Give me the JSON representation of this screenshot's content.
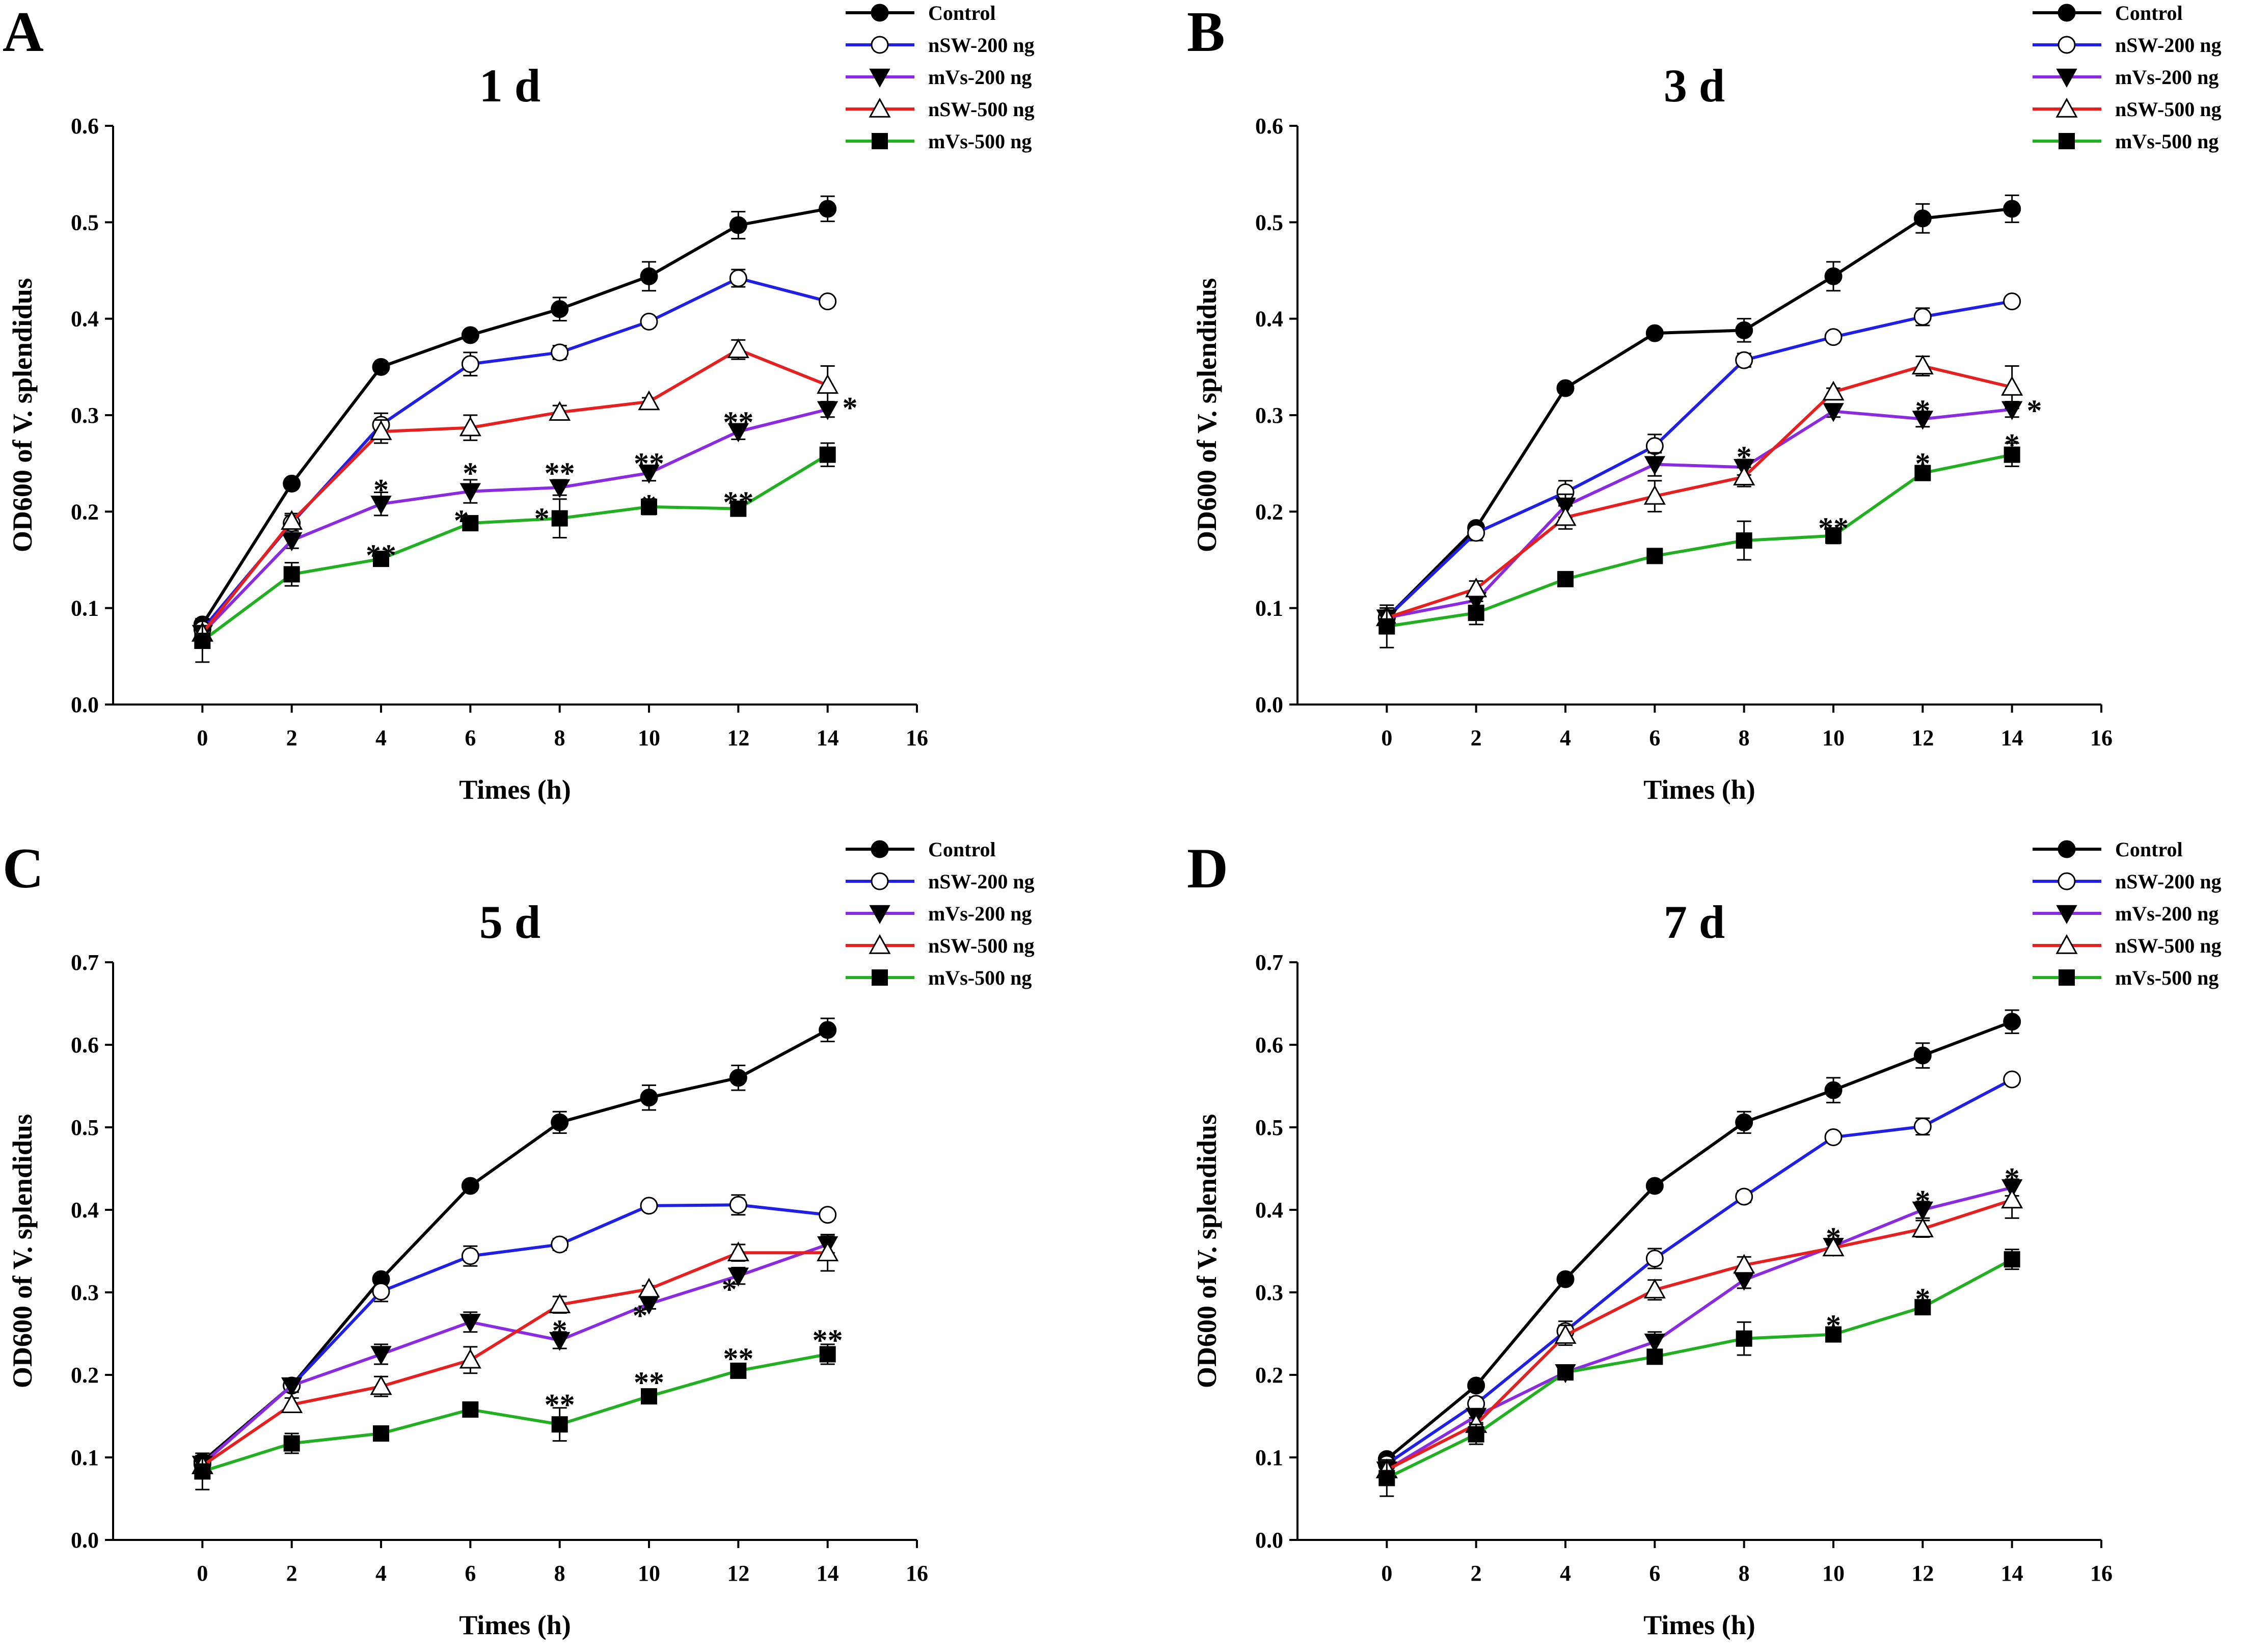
{
  "colors": {
    "Control": "#000000",
    "nSW-200 ng": "#1f1fe6",
    "mVs-200 ng": "#8a2be2",
    "nSW-500 ng": "#e61f1f",
    "mVs-500 ng": "#22b022"
  },
  "chart_data": [
    {
      "panel": "A",
      "type": "line",
      "title": "1 d",
      "xlabel": "Times (h)",
      "ylabel": "OD600 of V. splendidus",
      "xlim": [
        -2,
        16
      ],
      "ylim": [
        0,
        0.6
      ],
      "xticks": [
        0,
        2,
        4,
        6,
        8,
        10,
        12,
        14,
        16
      ],
      "yticks": [
        0.0,
        0.1,
        0.2,
        0.3,
        0.4,
        0.5,
        0.6
      ],
      "x": [
        0,
        2,
        4,
        6,
        8,
        10,
        12,
        14
      ],
      "legend_position": "top-right",
      "series": [
        {
          "name": "Control",
          "marker": "filled-circle",
          "values": [
            0.083,
            0.229,
            0.35,
            0.383,
            0.41,
            0.444,
            0.497,
            0.514
          ],
          "errors": [
            0.006,
            0.005,
            0.004,
            0.004,
            0.012,
            0.015,
            0.014,
            0.013
          ]
        },
        {
          "name": "nSW-200 ng",
          "marker": "open-circle",
          "values": [
            0.078,
            0.188,
            0.29,
            0.353,
            0.365,
            0.397,
            0.442,
            0.418
          ],
          "errors": [
            0.006,
            0.008,
            0.012,
            0.012,
            0.007,
            0.004,
            0.009,
            0.004
          ]
        },
        {
          "name": "mVs-200 ng",
          "marker": "filled-triangle-down",
          "values": [
            0.074,
            0.17,
            0.208,
            0.221,
            0.225,
            0.24,
            0.283,
            0.306
          ],
          "errors": [
            0.006,
            0.008,
            0.012,
            0.012,
            0.008,
            0.008,
            0.008,
            0.008
          ]
        },
        {
          "name": "nSW-500 ng",
          "marker": "open-triangle-up",
          "values": [
            0.074,
            0.19,
            0.283,
            0.287,
            0.303,
            0.314,
            0.368,
            0.331
          ],
          "errors": [
            0.006,
            0.008,
            0.012,
            0.013,
            0.007,
            0.004,
            0.01,
            0.02
          ]
        },
        {
          "name": "mVs-500 ng",
          "marker": "filled-square",
          "values": [
            0.066,
            0.135,
            0.151,
            0.188,
            0.193,
            0.205,
            0.203,
            0.259
          ],
          "errors": [
            0.022,
            0.012,
            0.005,
            0.006,
            0.02,
            0.008,
            0.004,
            0.012
          ]
        }
      ],
      "annotations": [
        {
          "text": "*",
          "x": 4,
          "y": 0.228
        },
        {
          "text": "**",
          "x": 4,
          "y": 0.16
        },
        {
          "text": "*",
          "x": 6,
          "y": 0.245
        },
        {
          "text": "*",
          "x": 5.8,
          "y": 0.196
        },
        {
          "text": "**",
          "x": 8,
          "y": 0.245
        },
        {
          "text": "*",
          "x": 7.6,
          "y": 0.198
        },
        {
          "text": "**",
          "x": 10,
          "y": 0.255
        },
        {
          "text": "*",
          "x": 10,
          "y": 0.212
        },
        {
          "text": "**",
          "x": 12,
          "y": 0.298
        },
        {
          "text": "**",
          "x": 12,
          "y": 0.215
        },
        {
          "text": "*",
          "x": 14.5,
          "y": 0.313
        }
      ]
    },
    {
      "panel": "B",
      "type": "line",
      "title": "3 d",
      "xlabel": "Times (h)",
      "ylabel": "OD600 of V. splendidus",
      "xlim": [
        -2,
        16
      ],
      "ylim": [
        0,
        0.6
      ],
      "xticks": [
        0,
        2,
        4,
        6,
        8,
        10,
        12,
        14,
        16
      ],
      "yticks": [
        0.0,
        0.1,
        0.2,
        0.3,
        0.4,
        0.5,
        0.6
      ],
      "x": [
        0,
        2,
        4,
        6,
        8,
        10,
        12,
        14
      ],
      "legend_position": "top-right",
      "series": [
        {
          "name": "Control",
          "marker": "filled-circle",
          "values": [
            0.09,
            0.183,
            0.328,
            0.385,
            0.388,
            0.444,
            0.504,
            0.514
          ],
          "errors": [
            0.006,
            0.005,
            0.004,
            0.004,
            0.012,
            0.015,
            0.015,
            0.014
          ]
        },
        {
          "name": "nSW-200 ng",
          "marker": "open-circle",
          "values": [
            0.09,
            0.178,
            0.22,
            0.268,
            0.357,
            0.381,
            0.402,
            0.418
          ],
          "errors": [
            0.01,
            0.008,
            0.012,
            0.012,
            0.007,
            0.004,
            0.009,
            0.004
          ]
        },
        {
          "name": "mVs-200 ng",
          "marker": "filled-triangle-down",
          "values": [
            0.09,
            0.108,
            0.206,
            0.249,
            0.246,
            0.304,
            0.296,
            0.306
          ],
          "errors": [
            0.01,
            0.008,
            0.012,
            0.012,
            0.008,
            0.006,
            0.008,
            0.008
          ]
        },
        {
          "name": "nSW-500 ng",
          "marker": "open-triangle-up",
          "values": [
            0.09,
            0.12,
            0.194,
            0.216,
            0.236,
            0.324,
            0.351,
            0.329
          ],
          "errors": [
            0.01,
            0.008,
            0.012,
            0.016,
            0.01,
            0.004,
            0.01,
            0.022
          ]
        },
        {
          "name": "mVs-500 ng",
          "marker": "filled-square",
          "values": [
            0.081,
            0.095,
            0.13,
            0.154,
            0.17,
            0.175,
            0.24,
            0.259
          ],
          "errors": [
            0.022,
            0.012,
            0.005,
            0.006,
            0.02,
            0.008,
            0.004,
            0.012
          ]
        }
      ],
      "annotations": [
        {
          "text": "*",
          "x": 8,
          "y": 0.262
        },
        {
          "text": "**",
          "x": 10,
          "y": 0.188
        },
        {
          "text": "*",
          "x": 12,
          "y": 0.31
        },
        {
          "text": "*",
          "x": 12,
          "y": 0.255
        },
        {
          "text": "*",
          "x": 14.5,
          "y": 0.31
        },
        {
          "text": "*",
          "x": 14,
          "y": 0.275
        }
      ]
    },
    {
      "panel": "C",
      "type": "line",
      "title": "5 d",
      "xlabel": "Times (h)",
      "ylabel": "OD600 of V. splendidus",
      "xlim": [
        -2,
        16
      ],
      "ylim": [
        0,
        0.7
      ],
      "xticks": [
        0,
        2,
        4,
        6,
        8,
        10,
        12,
        14,
        16
      ],
      "yticks": [
        0.0,
        0.1,
        0.2,
        0.3,
        0.4,
        0.5,
        0.6,
        0.7
      ],
      "x": [
        0,
        2,
        4,
        6,
        8,
        10,
        12,
        14
      ],
      "legend_position": "top-right",
      "series": [
        {
          "name": "Control",
          "marker": "filled-circle",
          "values": [
            0.095,
            0.187,
            0.316,
            0.429,
            0.506,
            0.536,
            0.56,
            0.618
          ],
          "errors": [
            0.006,
            0.006,
            0.004,
            0.004,
            0.013,
            0.015,
            0.015,
            0.014
          ]
        },
        {
          "name": "nSW-200 ng",
          "marker": "open-circle",
          "values": [
            0.092,
            0.187,
            0.301,
            0.344,
            0.358,
            0.405,
            0.406,
            0.394
          ],
          "errors": [
            0.01,
            0.008,
            0.012,
            0.012,
            0.007,
            0.004,
            0.012,
            0.004
          ]
        },
        {
          "name": "mVs-200 ng",
          "marker": "filled-triangle-down",
          "values": [
            0.092,
            0.187,
            0.225,
            0.264,
            0.242,
            0.286,
            0.32,
            0.358
          ],
          "errors": [
            0.01,
            0.008,
            0.012,
            0.012,
            0.01,
            0.006,
            0.01,
            0.01
          ]
        },
        {
          "name": "nSW-500 ng",
          "marker": "open-triangle-up",
          "values": [
            0.09,
            0.164,
            0.186,
            0.218,
            0.285,
            0.304,
            0.348,
            0.348
          ],
          "errors": [
            0.01,
            0.008,
            0.012,
            0.016,
            0.01,
            0.004,
            0.01,
            0.022
          ]
        },
        {
          "name": "mVs-500 ng",
          "marker": "filled-square",
          "values": [
            0.083,
            0.117,
            0.129,
            0.158,
            0.14,
            0.174,
            0.205,
            0.225
          ],
          "errors": [
            0.022,
            0.012,
            0.005,
            0.006,
            0.02,
            0.008,
            0.004,
            0.012
          ]
        }
      ],
      "annotations": [
        {
          "text": "*",
          "x": 8,
          "y": 0.26
        },
        {
          "text": "**",
          "x": 8,
          "y": 0.17
        },
        {
          "text": "*",
          "x": 9.8,
          "y": 0.278
        },
        {
          "text": "**",
          "x": 10,
          "y": 0.197
        },
        {
          "text": "*",
          "x": 11.8,
          "y": 0.31
        },
        {
          "text": "**",
          "x": 12,
          "y": 0.226
        },
        {
          "text": "**",
          "x": 14,
          "y": 0.248
        }
      ]
    },
    {
      "panel": "D",
      "type": "line",
      "title": "7 d",
      "xlabel": "Times (h)",
      "ylabel": "OD600 of V. splendidus",
      "xlim": [
        -2,
        16
      ],
      "ylim": [
        0,
        0.7
      ],
      "xticks": [
        0,
        2,
        4,
        6,
        8,
        10,
        12,
        14,
        16
      ],
      "yticks": [
        0.0,
        0.1,
        0.2,
        0.3,
        0.4,
        0.5,
        0.6,
        0.7
      ],
      "x": [
        0,
        2,
        4,
        6,
        8,
        10,
        12,
        14
      ],
      "legend_position": "top-right",
      "series": [
        {
          "name": "Control",
          "marker": "filled-circle",
          "values": [
            0.098,
            0.187,
            0.316,
            0.429,
            0.506,
            0.545,
            0.587,
            0.628
          ],
          "errors": [
            0.006,
            0.006,
            0.004,
            0.004,
            0.013,
            0.015,
            0.015,
            0.014
          ]
        },
        {
          "name": "nSW-200 ng",
          "marker": "open-circle",
          "values": [
            0.092,
            0.165,
            0.253,
            0.341,
            0.416,
            0.488,
            0.501,
            0.558
          ],
          "errors": [
            0.01,
            0.008,
            0.012,
            0.012,
            0.007,
            0.004,
            0.01,
            0.004
          ]
        },
        {
          "name": "mVs-200 ng",
          "marker": "filled-triangle-down",
          "values": [
            0.085,
            0.15,
            0.203,
            0.24,
            0.315,
            0.356,
            0.4,
            0.427
          ],
          "errors": [
            0.01,
            0.008,
            0.008,
            0.012,
            0.01,
            0.006,
            0.01,
            0.01
          ]
        },
        {
          "name": "nSW-500 ng",
          "marker": "open-triangle-up",
          "values": [
            0.085,
            0.14,
            0.248,
            0.303,
            0.333,
            0.354,
            0.377,
            0.412
          ],
          "errors": [
            0.01,
            0.008,
            0.012,
            0.012,
            0.01,
            0.004,
            0.01,
            0.022
          ]
        },
        {
          "name": "mVs-500 ng",
          "marker": "filled-square",
          "values": [
            0.075,
            0.128,
            0.203,
            0.222,
            0.244,
            0.249,
            0.282,
            0.34
          ],
          "errors": [
            0.022,
            0.012,
            0.005,
            0.006,
            0.02,
            0.008,
            0.004,
            0.012
          ]
        }
      ],
      "annotations": [
        {
          "text": "*",
          "x": 10,
          "y": 0.372
        },
        {
          "text": "*",
          "x": 10,
          "y": 0.266
        },
        {
          "text": "*",
          "x": 12,
          "y": 0.417
        },
        {
          "text": "*",
          "x": 12,
          "y": 0.298
        },
        {
          "text": "*",
          "x": 14,
          "y": 0.444
        }
      ]
    }
  ]
}
